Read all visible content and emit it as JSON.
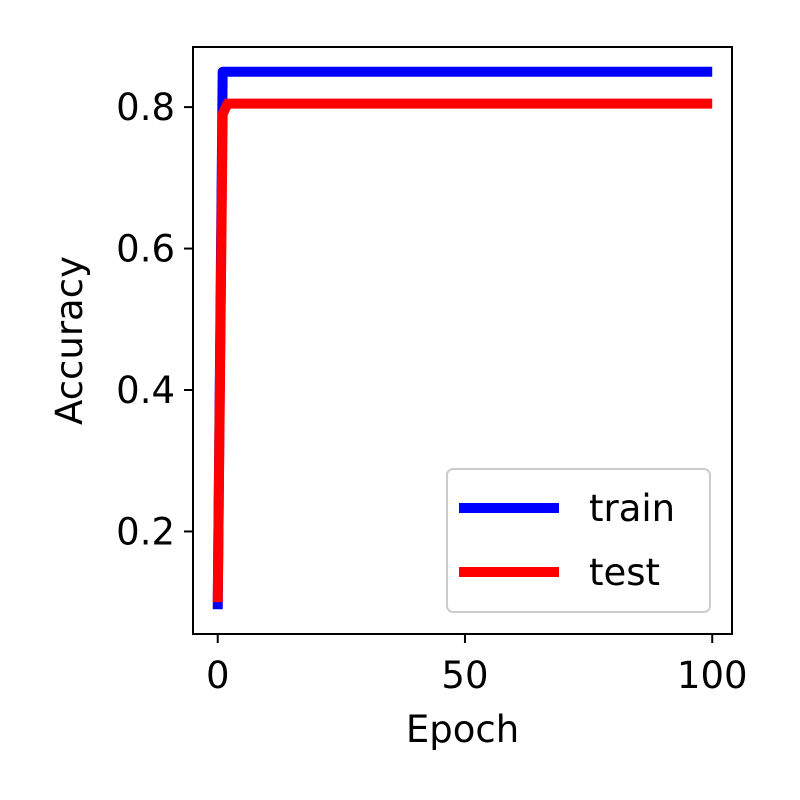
{
  "chart_data": {
    "type": "line",
    "xlabel": "Epoch",
    "ylabel": "Accuracy",
    "xlim": [
      -5,
      104
    ],
    "ylim": [
      0.055,
      0.885
    ],
    "xticks": [
      0,
      50,
      100
    ],
    "xtick_labels": [
      "0",
      "50",
      "100"
    ],
    "yticks": [
      0.2,
      0.4,
      0.6,
      0.8
    ],
    "ytick_labels": [
      "0.2",
      "0.4",
      "0.6",
      "0.8"
    ],
    "grid": false,
    "legend_position": "lower-right",
    "series": [
      {
        "name": "train",
        "color": "#0000ff",
        "x": [
          0,
          1,
          2,
          3,
          4,
          5,
          10,
          20,
          30,
          40,
          50,
          60,
          70,
          80,
          90,
          100
        ],
        "y": [
          0.09,
          0.85,
          0.85,
          0.85,
          0.85,
          0.85,
          0.85,
          0.85,
          0.85,
          0.85,
          0.85,
          0.85,
          0.85,
          0.85,
          0.85,
          0.85
        ]
      },
      {
        "name": "test",
        "color": "#ff0000",
        "x": [
          0,
          1,
          2,
          3,
          4,
          5,
          10,
          20,
          30,
          40,
          50,
          60,
          70,
          80,
          90,
          100
        ],
        "y": [
          0.1,
          0.79,
          0.805,
          0.805,
          0.805,
          0.805,
          0.805,
          0.805,
          0.805,
          0.805,
          0.805,
          0.805,
          0.805,
          0.805,
          0.805,
          0.805
        ]
      }
    ]
  }
}
